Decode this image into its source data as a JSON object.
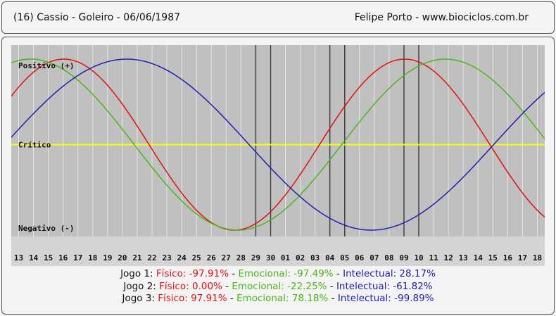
{
  "header": {
    "left": "(16)  Cassio - Goleiro -  06/06/1987",
    "right": "Felipe Porto   -   www.biociclos.com.br"
  },
  "chart_data": {
    "type": "line",
    "y_labels": {
      "positive": "Positivo (+)",
      "critical": "Crítico",
      "negative": "Negativo (-)"
    },
    "ylim": [
      -100,
      100
    ],
    "categories": [
      "13",
      "14",
      "15",
      "16",
      "17",
      "18",
      "19",
      "20",
      "21",
      "22",
      "23",
      "24",
      "25",
      "26",
      "27",
      "28",
      "29",
      "30",
      "01",
      "02",
      "03",
      "04",
      "05",
      "06",
      "07",
      "08",
      "09",
      "10",
      "11",
      "12",
      "13",
      "14",
      "15",
      "16",
      "17",
      "18"
    ],
    "series": [
      {
        "name": "Físico",
        "color": "#e01010",
        "period_days": 23,
        "peak_day": 26.55
      },
      {
        "name": "Emocional",
        "color": "#4cb51c",
        "period_days": 28,
        "peak_day": 29.3
      },
      {
        "name": "Intelectual",
        "color": "#2020b0",
        "period_days": 33,
        "peak_day": 40.8
      }
    ],
    "markers": [
      16.5,
      17.5,
      21.5,
      22.5,
      26.5,
      27.5
    ],
    "critical_color": "#ffff00",
    "background": "#c0c0c0",
    "grid": true
  },
  "jogos": [
    {
      "label": "Jogo 1:",
      "fisico": "Físico: -97.91%",
      "emocional": "Emocional: -97.49%",
      "intelectual": "Intelectual: 28.17%"
    },
    {
      "label": "Jogo 2:",
      "fisico": "Físico: 0.00%",
      "emocional": "Emocional: -22.25%",
      "intelectual": "Intelectual: -61.82%"
    },
    {
      "label": "Jogo 3:",
      "fisico": "Físico: 97.91%",
      "emocional": "Emocional: 78.18%",
      "intelectual": "Intelectual: -99.89%"
    }
  ],
  "separator": " - "
}
